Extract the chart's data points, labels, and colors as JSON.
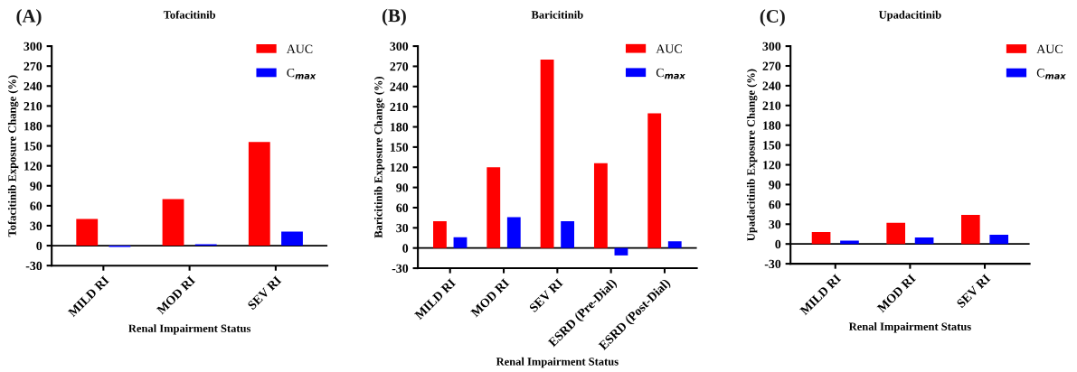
{
  "chart_data": [
    {
      "type": "bar",
      "title": "Tofacitinib",
      "annotations": [
        "(A)"
      ],
      "xlabel": "Renal Impairment Status",
      "ylabel": "Tofacitinib Exposure Change (%)",
      "categories": [
        "MILD RI",
        "MOD RI",
        "SEV RI"
      ],
      "series": [
        {
          "name": "AUC",
          "color": "#ff0000",
          "values": [
            40,
            70,
            156
          ]
        },
        {
          "name": "C$_{max}$",
          "color": "#0000ff",
          "values": [
            -2,
            2,
            21
          ]
        }
      ],
      "ylim": [
        -30,
        300
      ],
      "yticks": [
        -30,
        0,
        30,
        60,
        90,
        120,
        150,
        180,
        210,
        240,
        270,
        300
      ],
      "ref_lines": [
        {
          "axis": "y",
          "value": 0
        }
      ],
      "grid": false,
      "legend": "top right"
    },
    {
      "type": "bar",
      "title": "Baricitinib",
      "annotations": [
        "(B)"
      ],
      "xlabel": "Renal Impairment Status",
      "ylabel": "Baricitinib Exposure Change (%)",
      "categories": [
        "MILD RI",
        "MOD RI",
        "SEV RI",
        "ESRD (Pre-Dial)",
        "ESRD (Post-Dial)"
      ],
      "series": [
        {
          "name": "AUC",
          "color": "#ff0000",
          "values": [
            40,
            120,
            280,
            126,
            200
          ]
        },
        {
          "name": "C$_{max}$",
          "color": "#0000ff",
          "values": [
            16,
            46,
            40,
            -11,
            10
          ]
        }
      ],
      "ylim": [
        -30,
        300
      ],
      "yticks": [
        -30,
        0,
        30,
        60,
        90,
        120,
        150,
        180,
        210,
        240,
        270,
        300
      ],
      "ref_lines": [
        {
          "axis": "y",
          "value": 0
        }
      ],
      "grid": false,
      "legend": "top right"
    },
    {
      "type": "bar",
      "title": "Upadacitinib",
      "annotations": [
        "(C)"
      ],
      "xlabel": "Renal Impairment Status",
      "ylabel": "Upadacitinib Exposure Change (%)",
      "categories": [
        "MILD RI",
        "MOD RI",
        "SEV RI"
      ],
      "series": [
        {
          "name": "AUC",
          "color": "#ff0000",
          "values": [
            18,
            32,
            44
          ]
        },
        {
          "name": "C$_{max}$",
          "color": "#0000ff",
          "values": [
            5,
            10,
            14
          ]
        }
      ],
      "ylim": [
        -30,
        300
      ],
      "yticks": [
        -30,
        0,
        30,
        60,
        90,
        120,
        150,
        180,
        210,
        240,
        270,
        300
      ],
      "ref_lines": [
        {
          "axis": "y",
          "value": 0
        }
      ],
      "grid": false,
      "legend": "top right"
    }
  ]
}
